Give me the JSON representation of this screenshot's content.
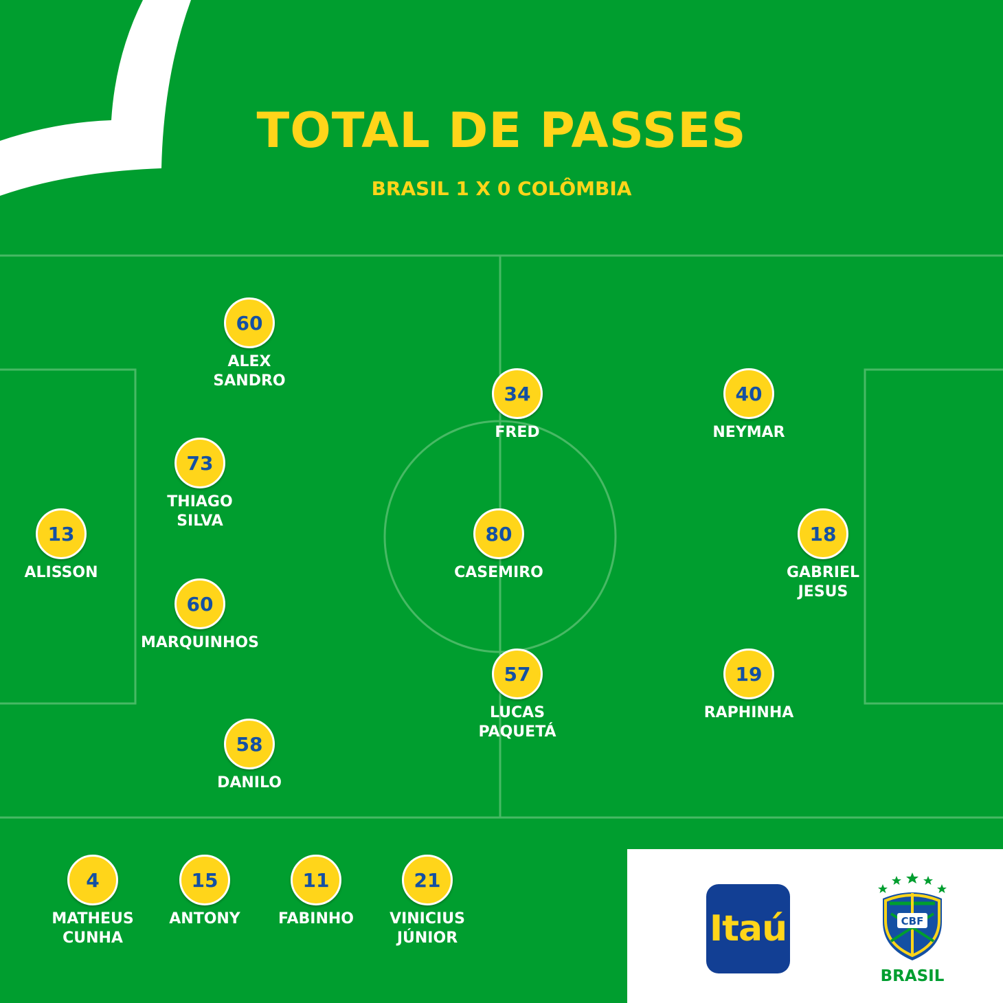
{
  "header": {
    "title": "TOTAL DE PASSES",
    "subtitle": "BRASIL 1 X 0 COLÔMBIA"
  },
  "colors": {
    "field_green": "#009e2f",
    "accent_yellow": "#ffd51a",
    "number_blue": "#1450a3",
    "itau_blue": "#123f94"
  },
  "starters": [
    {
      "id": "alisson",
      "name": "ALISSON",
      "passes": "13"
    },
    {
      "id": "alex-sandro",
      "name": "ALEX\nSANDRO",
      "passes": "60"
    },
    {
      "id": "thiago-silva",
      "name": "THIAGO\nSILVA",
      "passes": "73"
    },
    {
      "id": "marquinhos",
      "name": "MARQUINHOS",
      "passes": "60"
    },
    {
      "id": "danilo",
      "name": "DANILO",
      "passes": "58"
    },
    {
      "id": "fred",
      "name": "FRED",
      "passes": "34"
    },
    {
      "id": "casemiro",
      "name": "CASEMIRO",
      "passes": "80"
    },
    {
      "id": "lucas-paqueta",
      "name": "LUCAS\nPAQUETÁ",
      "passes": "57"
    },
    {
      "id": "neymar",
      "name": "NEYMAR",
      "passes": "40"
    },
    {
      "id": "gabriel-jesus",
      "name": "GABRIEL\nJESUS",
      "passes": "18"
    },
    {
      "id": "raphinha",
      "name": "RAPHINHA",
      "passes": "19"
    }
  ],
  "substitutes": [
    {
      "id": "matheus-cunha",
      "name": "MATHEUS\nCUNHA",
      "passes": "4"
    },
    {
      "id": "antony",
      "name": "ANTONY",
      "passes": "15"
    },
    {
      "id": "fabinho",
      "name": "FABINHO",
      "passes": "11"
    },
    {
      "id": "vinicius-junior",
      "name": "VINICIUS\nJÚNIOR",
      "passes": "21"
    }
  ],
  "sponsors": {
    "itau_label": "Itaú",
    "cbf_badge_text": "CBF",
    "cbf_label": "BRASIL"
  }
}
